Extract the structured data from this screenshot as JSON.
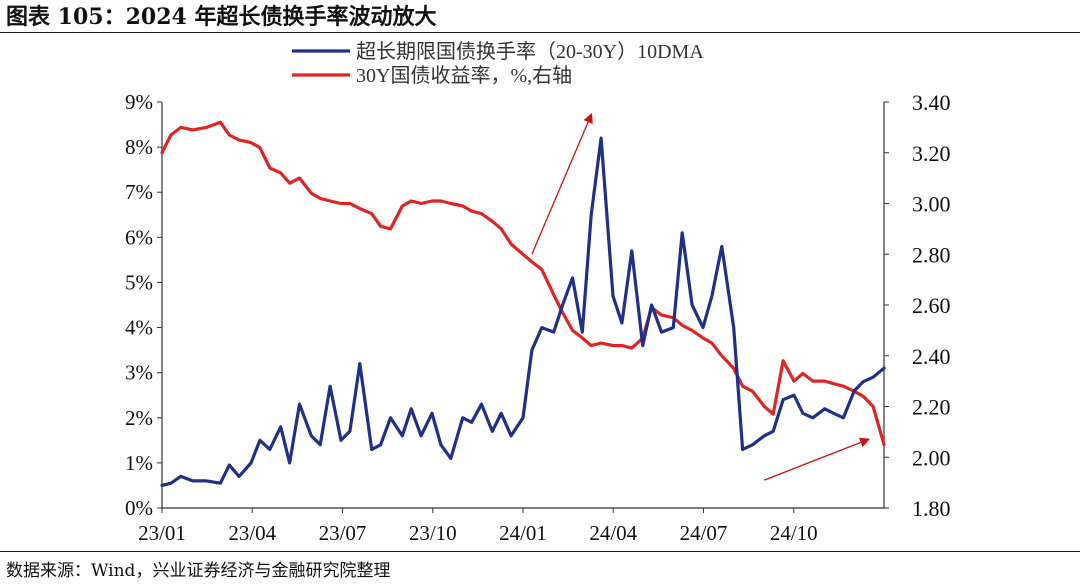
{
  "figure": {
    "title": "图表 105：2024 年超长债换手率波动放大",
    "source": "数据来源：Wind，兴业证券经济与金融研究院整理"
  },
  "colors": {
    "turnover": "#1f2f8a",
    "yield": "#e02424",
    "arrow": "#cc1111",
    "axis": "#333333"
  },
  "chart_data": {
    "type": "line",
    "title": "",
    "legend_position": "top-center",
    "grid": false,
    "x_ticks": [
      "23/01",
      "23/04",
      "23/07",
      "23/10",
      "24/01",
      "24/04",
      "24/07",
      "24/10"
    ],
    "x_range": [
      "2023-01-01",
      "2024-12-31"
    ],
    "y_left": {
      "range": [
        0,
        9
      ],
      "ticks": [
        "0%",
        "1%",
        "2%",
        "3%",
        "4%",
        "5%",
        "6%",
        "7%",
        "8%",
        "9%"
      ]
    },
    "y_right": {
      "range": [
        1.8,
        3.4
      ],
      "ticks": [
        "1.80",
        "2.00",
        "2.20",
        "2.40",
        "2.60",
        "2.80",
        "3.00",
        "3.20",
        "3.40"
      ]
    },
    "series": [
      {
        "name": "超长期限国债换手率（20-30Y）10DMA",
        "axis": "left",
        "x": [
          "2023-01-01",
          "2023-01-10",
          "2023-01-20",
          "2023-02-01",
          "2023-02-15",
          "2023-03-01",
          "2023-03-10",
          "2023-03-20",
          "2023-04-01",
          "2023-04-10",
          "2023-04-20",
          "2023-05-01",
          "2023-05-10",
          "2023-05-20",
          "2023-06-01",
          "2023-06-10",
          "2023-06-20",
          "2023-07-01",
          "2023-07-10",
          "2023-07-20",
          "2023-08-01",
          "2023-08-10",
          "2023-08-20",
          "2023-09-01",
          "2023-09-10",
          "2023-09-20",
          "2023-10-01",
          "2023-10-10",
          "2023-10-20",
          "2023-11-01",
          "2023-11-10",
          "2023-11-20",
          "2023-12-01",
          "2023-12-10",
          "2023-12-20",
          "2024-01-01",
          "2024-01-10",
          "2024-01-20",
          "2024-02-01",
          "2024-02-10",
          "2024-02-20",
          "2024-03-01",
          "2024-03-10",
          "2024-03-20",
          "2024-04-01",
          "2024-04-10",
          "2024-04-20",
          "2024-05-01",
          "2024-05-10",
          "2024-05-20",
          "2024-06-01",
          "2024-06-10",
          "2024-06-20",
          "2024-07-01",
          "2024-07-10",
          "2024-07-20",
          "2024-08-01",
          "2024-08-10",
          "2024-08-20",
          "2024-09-01",
          "2024-09-10",
          "2024-09-20",
          "2024-10-01",
          "2024-10-10",
          "2024-10-20",
          "2024-11-01",
          "2024-11-10",
          "2024-11-20",
          "2024-12-01",
          "2024-12-10",
          "2024-12-20",
          "2024-12-31"
        ],
        "values": [
          0.5,
          0.55,
          0.7,
          0.6,
          0.6,
          0.55,
          0.95,
          0.7,
          1.0,
          1.5,
          1.3,
          1.8,
          1.0,
          2.3,
          1.6,
          1.4,
          2.7,
          1.5,
          1.7,
          3.2,
          1.3,
          1.4,
          2.0,
          1.6,
          2.2,
          1.6,
          2.1,
          1.4,
          1.1,
          2.0,
          1.9,
          2.3,
          1.7,
          2.1,
          1.6,
          2.0,
          3.5,
          4.0,
          3.9,
          4.5,
          5.1,
          3.9,
          6.5,
          8.2,
          4.7,
          4.1,
          5.7,
          3.6,
          4.5,
          3.9,
          4.0,
          6.1,
          4.5,
          4.0,
          4.7,
          5.8,
          4.0,
          1.3,
          1.4,
          1.6,
          1.7,
          2.4,
          2.5,
          2.1,
          2.0,
          2.2,
          2.1,
          2.0,
          2.6,
          2.8,
          2.9,
          3.1
        ]
      },
      {
        "name": "30Y国债收益率，%,右轴",
        "axis": "right",
        "x": [
          "2023-01-01",
          "2023-01-10",
          "2023-01-20",
          "2023-02-01",
          "2023-02-15",
          "2023-03-01",
          "2023-03-10",
          "2023-03-20",
          "2023-04-01",
          "2023-04-10",
          "2023-04-20",
          "2023-05-01",
          "2023-05-10",
          "2023-05-20",
          "2023-06-01",
          "2023-06-10",
          "2023-06-20",
          "2023-07-01",
          "2023-07-10",
          "2023-07-20",
          "2023-08-01",
          "2023-08-10",
          "2023-08-20",
          "2023-09-01",
          "2023-09-10",
          "2023-09-20",
          "2023-10-01",
          "2023-10-10",
          "2023-10-20",
          "2023-11-01",
          "2023-11-10",
          "2023-11-20",
          "2023-12-01",
          "2023-12-10",
          "2023-12-20",
          "2024-01-01",
          "2024-01-10",
          "2024-01-20",
          "2024-02-01",
          "2024-02-10",
          "2024-02-20",
          "2024-03-01",
          "2024-03-10",
          "2024-03-20",
          "2024-04-01",
          "2024-04-10",
          "2024-04-20",
          "2024-05-01",
          "2024-05-10",
          "2024-05-20",
          "2024-06-01",
          "2024-06-10",
          "2024-06-20",
          "2024-07-01",
          "2024-07-10",
          "2024-07-20",
          "2024-08-01",
          "2024-08-10",
          "2024-08-20",
          "2024-09-01",
          "2024-09-10",
          "2024-09-20",
          "2024-10-01",
          "2024-10-10",
          "2024-10-20",
          "2024-11-01",
          "2024-11-10",
          "2024-11-20",
          "2024-12-01",
          "2024-12-10",
          "2024-12-20",
          "2024-12-31"
        ],
        "values": [
          3.2,
          3.27,
          3.3,
          3.29,
          3.3,
          3.32,
          3.27,
          3.25,
          3.24,
          3.22,
          3.14,
          3.12,
          3.08,
          3.1,
          3.04,
          3.02,
          3.01,
          3.0,
          3.0,
          2.98,
          2.96,
          2.91,
          2.9,
          2.99,
          3.01,
          3.0,
          3.01,
          3.01,
          3.0,
          2.99,
          2.97,
          2.96,
          2.93,
          2.9,
          2.84,
          2.8,
          2.77,
          2.74,
          2.64,
          2.57,
          2.5,
          2.47,
          2.44,
          2.45,
          2.44,
          2.44,
          2.43,
          2.47,
          2.59,
          2.56,
          2.55,
          2.52,
          2.5,
          2.47,
          2.45,
          2.4,
          2.35,
          2.28,
          2.26,
          2.2,
          2.17,
          2.38,
          2.3,
          2.33,
          2.3,
          2.3,
          2.29,
          2.28,
          2.26,
          2.24,
          2.2,
          2.05
        ]
      }
    ],
    "annotations": [
      {
        "type": "arrow",
        "from": [
          "2024-01-10",
          2.8
        ],
        "to": [
          "2024-03-10",
          3.35
        ],
        "axis": "right"
      },
      {
        "type": "arrow",
        "from": [
          "2024-09-01",
          1.91
        ],
        "to": [
          "2024-12-15",
          2.07
        ],
        "axis": "right"
      }
    ]
  }
}
